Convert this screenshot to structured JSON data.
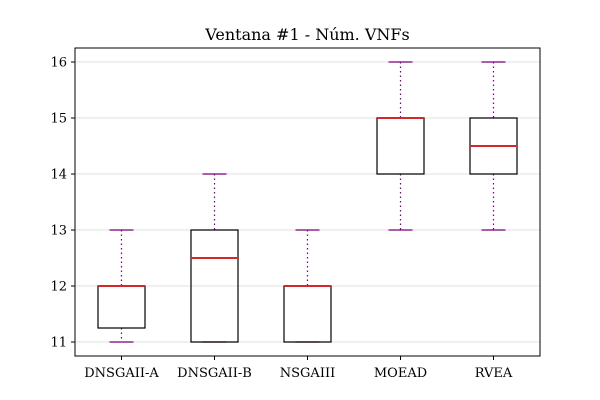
{
  "chart_data": {
    "type": "box",
    "title": "Ventana #1 - Núm. VNFs",
    "xlabel": "",
    "ylabel": "",
    "categories": [
      "DNSGAII-A",
      "DNSGAII-B",
      "NSGAIII",
      "MOEAD",
      "RVEA"
    ],
    "boxes": [
      {
        "whisker_low": 11,
        "q1": 11.25,
        "median": 12,
        "q3": 12,
        "whisker_high": 13
      },
      {
        "whisker_low": 11,
        "q1": 11,
        "median": 12.5,
        "q3": 13,
        "whisker_high": 14
      },
      {
        "whisker_low": 11,
        "q1": 11,
        "median": 12,
        "q3": 12,
        "whisker_high": 13
      },
      {
        "whisker_low": 13,
        "q1": 14,
        "median": 15,
        "q3": 15,
        "whisker_high": 16
      },
      {
        "whisker_low": 13,
        "q1": 14,
        "median": 14.5,
        "q3": 15,
        "whisker_high": 16
      }
    ],
    "yticks": [
      11,
      12,
      13,
      14,
      15,
      16
    ],
    "ylim": [
      10.75,
      16.25
    ],
    "grid": "horizontal",
    "colors": {
      "box": "#000000",
      "median": "#d62728",
      "whisker": "#800080",
      "grid": "#ebebeb"
    }
  }
}
